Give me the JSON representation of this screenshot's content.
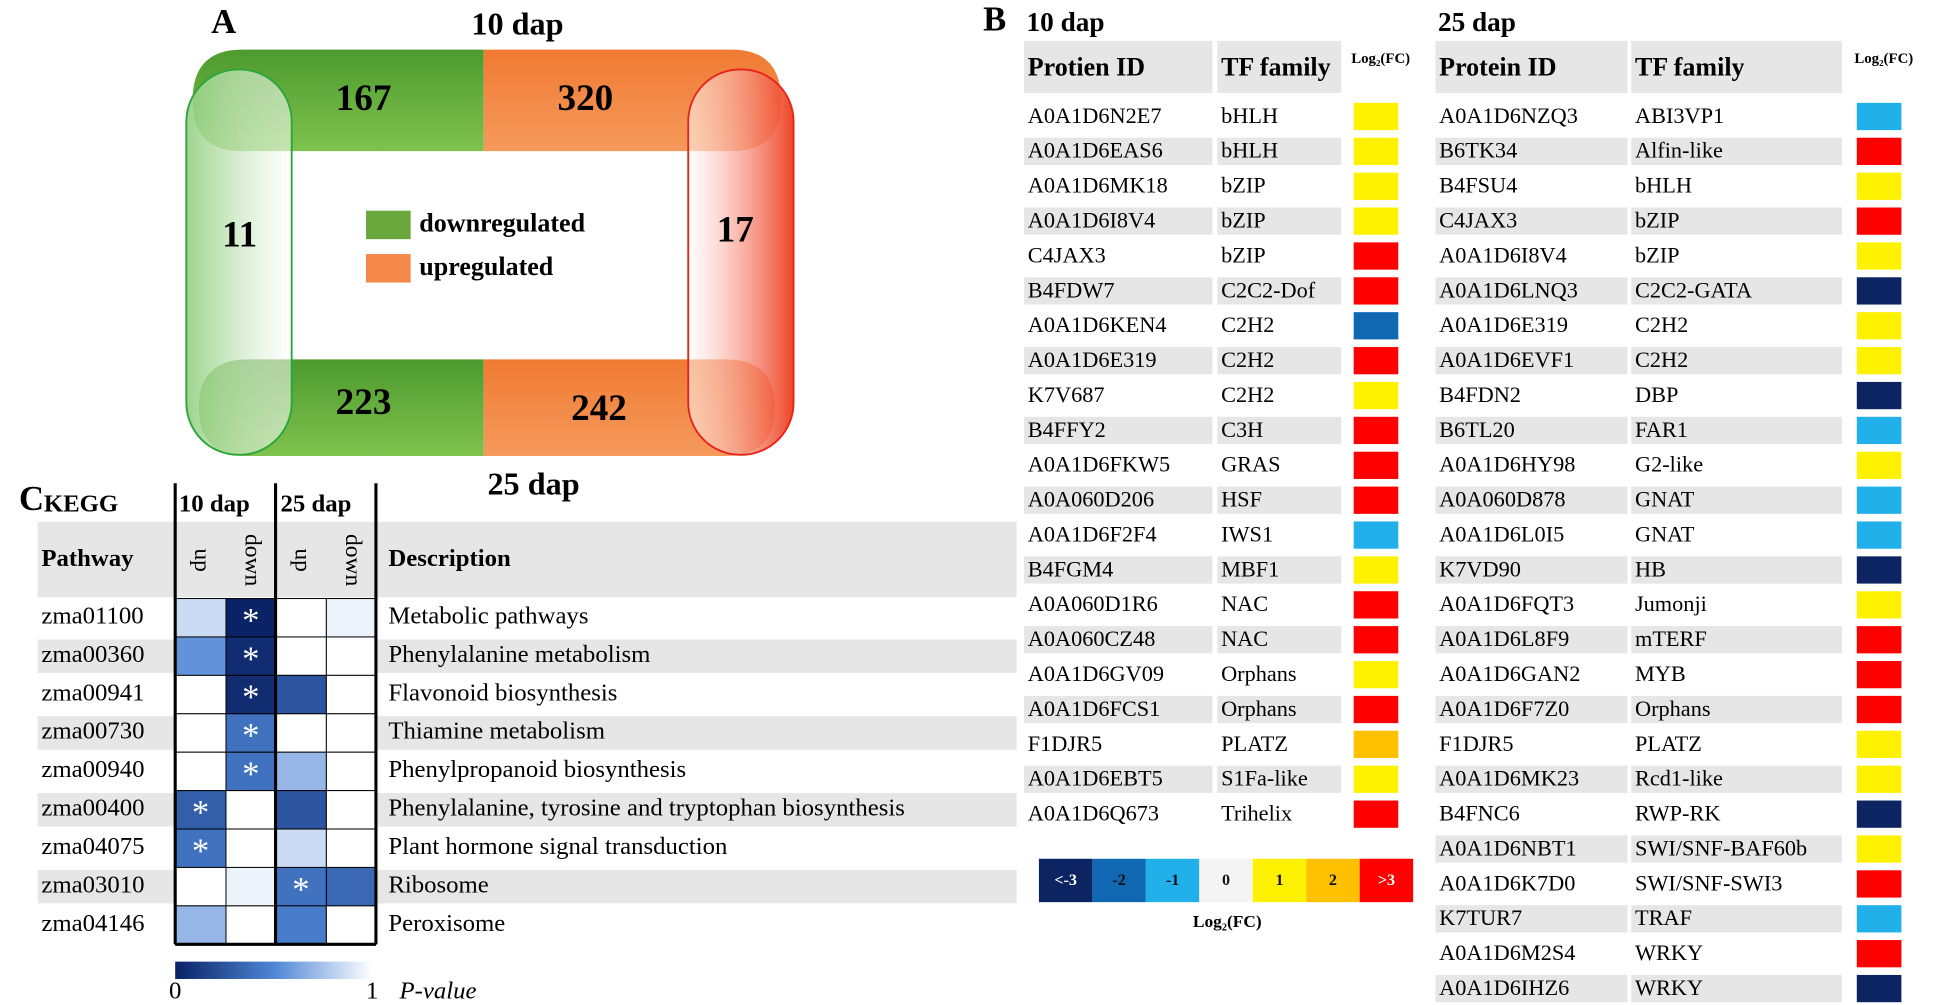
{
  "panel_a": {
    "letter": "A",
    "top_label": "10 dap",
    "bottom_label": "25 dap",
    "top": {
      "down": 167,
      "up": 320
    },
    "bottom": {
      "down": 223,
      "up": 242
    },
    "left": 11,
    "right": 17,
    "legend": [
      {
        "label": "downregulated",
        "color": "#6aa83d"
      },
      {
        "label": "upregulated",
        "color": "#f4884a"
      }
    ]
  },
  "panel_b": {
    "letter": "B",
    "legend_title": "Log₂(FC)",
    "levels": [
      {
        "value": -3,
        "label": "<-3",
        "color": "#0c2461"
      },
      {
        "value": -2,
        "label": "-2",
        "color": "#1068b3"
      },
      {
        "value": -1,
        "label": "-1",
        "color": "#22b0ea"
      },
      {
        "value": 0,
        "label": "0",
        "color": "#f4f4f4"
      },
      {
        "value": 1,
        "label": "1",
        "color": "#fff200"
      },
      {
        "value": 2,
        "label": "2",
        "color": "#ffc000"
      },
      {
        "value": 3,
        "label": ">3",
        "color": "#ff0000"
      }
    ],
    "tables": [
      {
        "title": "10 dap",
        "headers": [
          "Protien ID",
          "TF family",
          "Log₂(FC)"
        ],
        "rows": [
          {
            "id": "A0A1D6N2E7",
            "family": "bHLH",
            "fc": 1
          },
          {
            "id": "A0A1D6EAS6",
            "family": "bHLH",
            "fc": 1
          },
          {
            "id": "A0A1D6MK18",
            "family": "bZIP",
            "fc": 1
          },
          {
            "id": "A0A1D6I8V4",
            "family": "bZIP",
            "fc": 1
          },
          {
            "id": "C4JAX3",
            "family": "bZIP",
            "fc": 3
          },
          {
            "id": "B4FDW7",
            "family": "C2C2-Dof",
            "fc": 3
          },
          {
            "id": "A0A1D6KEN4",
            "family": "C2H2",
            "fc": -2
          },
          {
            "id": "A0A1D6E319",
            "family": "C2H2",
            "fc": 3
          },
          {
            "id": "K7V687",
            "family": "C2H2",
            "fc": 1
          },
          {
            "id": "B4FFY2",
            "family": "C3H",
            "fc": 3
          },
          {
            "id": "A0A1D6FKW5",
            "family": "GRAS",
            "fc": 3
          },
          {
            "id": "A0A060D206",
            "family": "HSF",
            "fc": 3
          },
          {
            "id": "A0A1D6F2F4",
            "family": "IWS1",
            "fc": -1
          },
          {
            "id": "B4FGM4",
            "family": "MBF1",
            "fc": 1
          },
          {
            "id": "A0A060D1R6",
            "family": "NAC",
            "fc": 3
          },
          {
            "id": "A0A060CZ48",
            "family": "NAC",
            "fc": 3
          },
          {
            "id": "A0A1D6GV09",
            "family": "Orphans",
            "fc": 1
          },
          {
            "id": "A0A1D6FCS1",
            "family": "Orphans",
            "fc": 3
          },
          {
            "id": "F1DJR5",
            "family": "PLATZ",
            "fc": 2
          },
          {
            "id": "A0A1D6EBT5",
            "family": "S1Fa-like",
            "fc": 1
          },
          {
            "id": "A0A1D6Q673",
            "family": "Trihelix",
            "fc": 3
          }
        ]
      },
      {
        "title": "25 dap",
        "headers": [
          "Protein ID",
          "TF family",
          "Log₂(FC)"
        ],
        "rows": [
          {
            "id": "A0A1D6NZQ3",
            "family": "ABI3VP1",
            "fc": -1
          },
          {
            "id": "B6TK34",
            "family": "Alfin-like",
            "fc": 3
          },
          {
            "id": "B4FSU4",
            "family": "bHLH",
            "fc": 1
          },
          {
            "id": "C4JAX3",
            "family": "bZIP",
            "fc": 3
          },
          {
            "id": "A0A1D6I8V4",
            "family": "bZIP",
            "fc": 1
          },
          {
            "id": "A0A1D6LNQ3",
            "family": "C2C2-GATA",
            "fc": -3
          },
          {
            "id": "A0A1D6E319",
            "family": "C2H2",
            "fc": 1
          },
          {
            "id": "A0A1D6EVF1",
            "family": "C2H2",
            "fc": 1
          },
          {
            "id": "B4FDN2",
            "family": "DBP",
            "fc": -3
          },
          {
            "id": "B6TL20",
            "family": "FAR1",
            "fc": -1
          },
          {
            "id": "A0A1D6HY98",
            "family": "G2-like",
            "fc": 1
          },
          {
            "id": "A0A060D878",
            "family": "GNAT",
            "fc": -1
          },
          {
            "id": "A0A1D6L0I5",
            "family": "GNAT",
            "fc": -1
          },
          {
            "id": "K7VD90",
            "family": "HB",
            "fc": -3
          },
          {
            "id": "A0A1D6FQT3",
            "family": "Jumonji",
            "fc": 1
          },
          {
            "id": "A0A1D6L8F9",
            "family": "mTERF",
            "fc": 3
          },
          {
            "id": "A0A1D6GAN2",
            "family": "MYB",
            "fc": 3
          },
          {
            "id": "A0A1D6F7Z0",
            "family": "Orphans",
            "fc": 3
          },
          {
            "id": "F1DJR5",
            "family": "PLATZ",
            "fc": 1
          },
          {
            "id": "A0A1D6MK23",
            "family": "Rcd1-like",
            "fc": 1
          },
          {
            "id": "B4FNC6",
            "family": "RWP-RK",
            "fc": -3
          },
          {
            "id": "A0A1D6NBT1",
            "family": "SWI/SNF-BAF60b",
            "fc": 1
          },
          {
            "id": "A0A1D6K7D0",
            "family": "SWI/SNF-SWI3",
            "fc": 3
          },
          {
            "id": "K7TUR7",
            "family": "TRAF",
            "fc": -1
          },
          {
            "id": "A0A1D6M2S4",
            "family": "WRKY",
            "fc": 3
          },
          {
            "id": "A0A1D6IHZ6",
            "family": "WRKY",
            "fc": -3
          }
        ]
      }
    ]
  },
  "panel_c": {
    "letter": "C",
    "heading": "KEGG",
    "groups": [
      "10 dap",
      "25 dap"
    ],
    "columns": [
      "up",
      "down",
      "up",
      "down"
    ],
    "row_header": "Pathway",
    "desc_header": "Description",
    "marker": "*",
    "colormap": [
      "#0a2266",
      "#4f86d6",
      "#ffffff"
    ],
    "scale": {
      "min": 0,
      "max": 1,
      "label": "P-value"
    },
    "rows": [
      {
        "id": "zma01100",
        "description": "Metabolic pathways",
        "p": [
          0.85,
          0.0,
          1,
          0.95
        ],
        "significant": [
          1
        ]
      },
      {
        "id": "zma00360",
        "description": "Phenylalanine metabolism",
        "p": [
          0.55,
          0.05,
          1,
          1
        ],
        "significant": [
          1
        ]
      },
      {
        "id": "zma00941",
        "description": "Flavonoid biosynthesis",
        "p": [
          1,
          0.05,
          0.25,
          1
        ],
        "significant": [
          1
        ]
      },
      {
        "id": "zma00730",
        "description": "Thiamine metabolism",
        "p": [
          1,
          0.4,
          1,
          1
        ],
        "significant": [
          1
        ]
      },
      {
        "id": "zma00940",
        "description": "Phenylpropanoid biosynthesis",
        "p": [
          1,
          0.4,
          0.7,
          1
        ],
        "significant": [
          1
        ]
      },
      {
        "id": "zma00400",
        "description": "Phenylalanine, tyrosine and tryptophan biosynthesis",
        "p": [
          0.3,
          1,
          0.25,
          1
        ],
        "significant": [
          0
        ]
      },
      {
        "id": "zma04075",
        "description": "Plant hormone signal transduction",
        "p": [
          0.4,
          1,
          0.85,
          1
        ],
        "significant": [
          0
        ]
      },
      {
        "id": "zma03010",
        "description": "Ribosome",
        "p": [
          1,
          0.95,
          0.4,
          0.35
        ],
        "significant": [
          2
        ]
      },
      {
        "id": "zma04146",
        "description": "Peroxisome",
        "p": [
          0.7,
          1,
          0.45,
          1
        ],
        "significant": []
      }
    ]
  }
}
